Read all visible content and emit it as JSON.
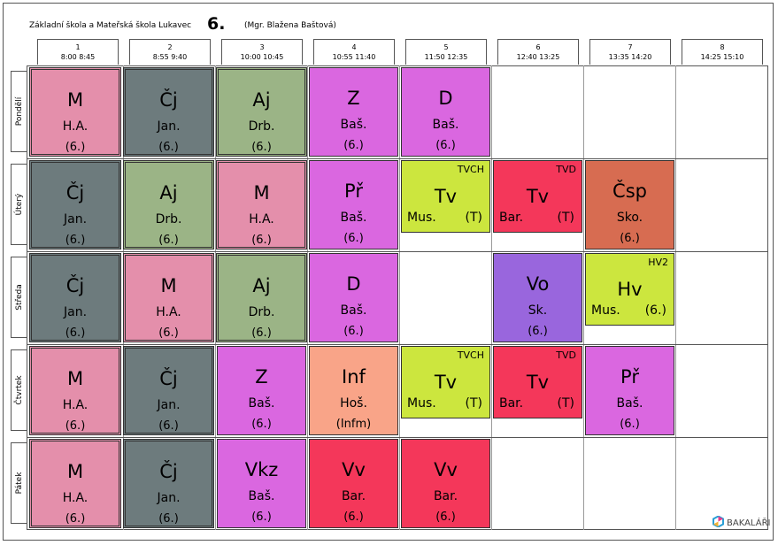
{
  "header": {
    "school": "Základní škola a Mateřská škola Lukavec",
    "class_name": "6.",
    "teacher": "(Mgr. Blažena Baštová)"
  },
  "periods": [
    {
      "num": "1",
      "time": "8:00 8:45"
    },
    {
      "num": "2",
      "time": "8:55 9:40"
    },
    {
      "num": "3",
      "time": "10:00 10:45"
    },
    {
      "num": "4",
      "time": "10:55 11:40"
    },
    {
      "num": "5",
      "time": "11:50 12:35"
    },
    {
      "num": "6",
      "time": "12:40 13:25"
    },
    {
      "num": "7",
      "time": "13:35 14:20"
    },
    {
      "num": "8",
      "time": "14:25 15:10"
    }
  ],
  "days": [
    "Pondělí",
    "Úterý",
    "Středa",
    "Čtvrtek",
    "Pátek"
  ],
  "colors": {
    "M": "#e48fab",
    "Cj": "#6d7b7d",
    "Aj": "#9bb486",
    "pink": "#da67e0",
    "Tv": "#cce63e",
    "red": "#f4375a",
    "Csp": "#d76c51",
    "Vo": "#9966dd",
    "Inf": "#f9a488"
  },
  "lessons": {
    "mon": [
      {
        "s": "M",
        "t": "H.A.",
        "r": "(6.)"
      },
      {
        "s": "Čj",
        "t": "Jan.",
        "r": "(6.)"
      },
      {
        "s": "Aj",
        "t": "Drb.",
        "r": "(6.)"
      },
      {
        "s": "Z",
        "t": "Baš.",
        "r": "(6.)"
      },
      {
        "s": "D",
        "t": "Baš.",
        "r": "(6.)"
      }
    ],
    "tue": [
      {
        "s": "Čj",
        "t": "Jan.",
        "r": "(6.)"
      },
      {
        "s": "Aj",
        "t": "Drb.",
        "r": "(6.)"
      },
      {
        "s": "M",
        "t": "H.A.",
        "r": "(6.)"
      },
      {
        "s": "Př",
        "t": "Baš.",
        "r": "(6.)"
      },
      {
        "s": "Tv",
        "t": "Mus.",
        "r": "(T)",
        "g": "TVCH"
      },
      {
        "s": "Tv",
        "t": "Bar.",
        "r": "(T)",
        "g": "TVD"
      },
      {
        "s": "Čsp",
        "t": "Sko.",
        "r": "(6.)"
      }
    ],
    "wed": [
      {
        "s": "Čj",
        "t": "Jan.",
        "r": "(6.)"
      },
      {
        "s": "M",
        "t": "H.A.",
        "r": "(6.)"
      },
      {
        "s": "Aj",
        "t": "Drb.",
        "r": "(6.)"
      },
      {
        "s": "D",
        "t": "Baš.",
        "r": "(6.)"
      },
      {
        "s": "Vo",
        "t": "Sk.",
        "r": "(6.)"
      },
      {
        "s": "Hv",
        "t": "Mus.",
        "r": "(6.)",
        "g": "HV2"
      }
    ],
    "thu": [
      {
        "s": "M",
        "t": "H.A.",
        "r": "(6.)"
      },
      {
        "s": "Čj",
        "t": "Jan.",
        "r": "(6.)"
      },
      {
        "s": "Z",
        "t": "Baš.",
        "r": "(6.)"
      },
      {
        "s": "Inf",
        "t": "Hoš.",
        "r": "(Infm)"
      },
      {
        "s": "Tv",
        "t": "Mus.",
        "r": "(T)",
        "g": "TVCH"
      },
      {
        "s": "Tv",
        "t": "Bar.",
        "r": "(T)",
        "g": "TVD"
      },
      {
        "s": "Př",
        "t": "Baš.",
        "r": "(6.)"
      }
    ],
    "fri": [
      {
        "s": "M",
        "t": "H.A.",
        "r": "(6.)"
      },
      {
        "s": "Čj",
        "t": "Jan.",
        "r": "(6.)"
      },
      {
        "s": "Vkz",
        "t": "Baš.",
        "r": "(6.)"
      },
      {
        "s": "Vv",
        "t": "Bar.",
        "r": "(6.)"
      },
      {
        "s": "Vv",
        "t": "Bar.",
        "r": "(6.)"
      }
    ]
  },
  "logo": {
    "text": "BAKALÁŘI",
    "icon": "bakalari-logo-icon"
  }
}
